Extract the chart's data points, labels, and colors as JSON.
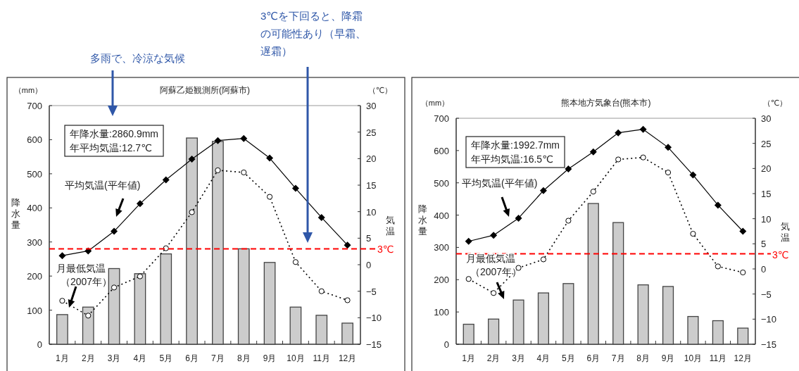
{
  "chart_data": [
    {
      "type": "bar",
      "title": "阿蘇乙姫観測所(阿蘇市)",
      "ylabel": "降水量",
      "y2label": "気温",
      "categories": [
        "1月",
        "2月",
        "3月",
        "4月",
        "5月",
        "6月",
        "7月",
        "8月",
        "9月",
        "10月",
        "11月",
        "12月"
      ],
      "series": [
        {
          "color": "#cccccc",
          "values": [
            87,
            109,
            222,
            207,
            265,
            605,
            595,
            280,
            240,
            109,
            85,
            62
          ]
        },
        {
          "type": "line",
          "axis": "y2",
          "name": "平均気温(平年値)",
          "color": "#000000",
          "marker": "diamond",
          "line_style": "solid",
          "values": [
            1.7,
            2.6,
            6.3,
            11.5,
            16.0,
            19.9,
            23.4,
            23.8,
            20.1,
            14.4,
            8.9,
            3.7
          ]
        },
        {
          "type": "line",
          "axis": "y2",
          "name": "月最低気温（2007年）",
          "color": "#000000",
          "marker": "circle",
          "line_style": "dotted",
          "values": [
            -6.8,
            -9.6,
            -4.3,
            -2.2,
            3.1,
            9.9,
            17.8,
            17.4,
            12.8,
            0.5,
            -5.0,
            -6.7
          ]
        }
      ],
      "ylim": [
        0,
        700
      ],
      "yticks": [
        0,
        100,
        200,
        300,
        400,
        500,
        600,
        700
      ],
      "y2lim": [
        -15,
        30
      ],
      "y2ticks": [
        -15,
        -10,
        -5,
        0,
        5,
        10,
        15,
        20,
        25,
        30
      ],
      "ref_lines": [
        {
          "axis": "y2",
          "value": 3,
          "label": "3℃",
          "color": "#ff0000",
          "line_style": "dashed"
        }
      ],
      "annotations": [
        "（mm）",
        "（℃）",
        "年降水量:2860.9mm\n年平均気温:12.7℃",
        "多雨で、冷涼な気候",
        "3℃を下回ると、降霜の可能性あり（早霜、遅霜）"
      ]
    },
    {
      "type": "bar",
      "title": "熊本地方気象台(熊本市)",
      "ylabel": "降水量",
      "y2label": "気温",
      "categories": [
        "1月",
        "2月",
        "3月",
        "4月",
        "5月",
        "6月",
        "7月",
        "8月",
        "9月",
        "10月",
        "11月",
        "12月"
      ],
      "series": [
        {
          "color": "#cccccc",
          "values": [
            62,
            78,
            137,
            159,
            188,
            436,
            377,
            184,
            179,
            86,
            73,
            50
          ]
        },
        {
          "type": "line",
          "axis": "y2",
          "name": "平均気温(平年値)",
          "color": "#000000",
          "marker": "diamond",
          "line_style": "solid",
          "values": [
            5.5,
            6.7,
            10.1,
            15.6,
            19.9,
            23.3,
            27.1,
            27.8,
            24.2,
            18.7,
            12.7,
            7.5
          ]
        },
        {
          "type": "line",
          "axis": "y2",
          "name": "月最低気温（2007年）",
          "color": "#000000",
          "marker": "circle",
          "line_style": "dotted",
          "values": [
            -2.0,
            -4.8,
            0.2,
            1.9,
            9.6,
            15.4,
            21.8,
            22.2,
            19.2,
            7.0,
            0.5,
            -0.7
          ]
        }
      ],
      "ylim": [
        0,
        700
      ],
      "yticks": [
        0,
        100,
        200,
        300,
        400,
        500,
        600,
        700
      ],
      "y2lim": [
        -15,
        30
      ],
      "y2ticks": [
        -15,
        -10,
        -5,
        0,
        5,
        10,
        15,
        20,
        25,
        30
      ],
      "ref_lines": [
        {
          "axis": "y2",
          "value": 3,
          "label": "3℃",
          "color": "#ff0000",
          "line_style": "dashed"
        }
      ],
      "annotations": [
        "（mm）",
        "（℃）",
        "年降水量:1992.7mm\n年平均気温:16.5℃"
      ]
    }
  ]
}
